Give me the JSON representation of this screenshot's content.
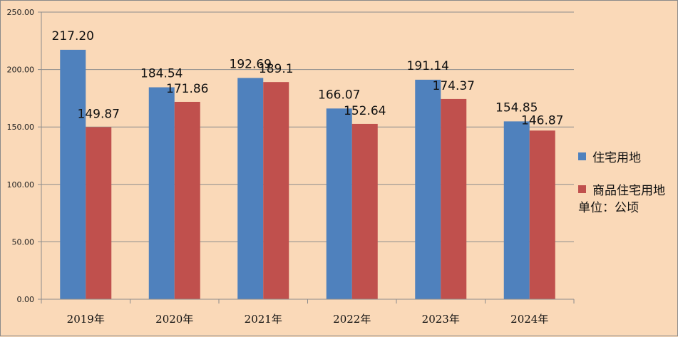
{
  "chart_data": {
    "type": "bar",
    "title": "",
    "xlabel": "",
    "ylabel": "",
    "categories": [
      "2019年",
      "2020年",
      "2021年",
      "2022年",
      "2023年",
      "2024年"
    ],
    "series": [
      {
        "name": "住宅用地",
        "values": [
          217.2,
          184.54,
          192.69,
          166.07,
          191.14,
          154.85
        ],
        "labels": [
          "217.20",
          "184.54",
          "192.69",
          "166.07",
          "191.14",
          "154.85"
        ],
        "color": "#4f81bd"
      },
      {
        "name": "商品住宅用地",
        "values": [
          149.87,
          171.86,
          189.1,
          152.64,
          174.37,
          146.87
        ],
        "labels": [
          "149.87",
          "171.86",
          "189.1",
          "152.64",
          "174.37",
          "146.87"
        ],
        "color": "#c0504d"
      }
    ],
    "ylim": [
      0,
      250
    ],
    "yticks": [
      "0.00",
      "50.00",
      "100.00",
      "150.00",
      "200.00",
      "250.00"
    ],
    "grid": true,
    "legend_position": "right",
    "unit_note": "单位：公顷"
  }
}
